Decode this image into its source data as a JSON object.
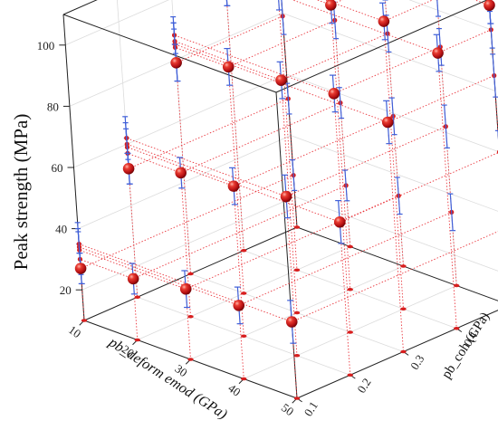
{
  "chart_data": {
    "type": "scatter",
    "title": "",
    "xlabel": "pb_deform emod (GPa)",
    "ylabel": "pb_coh (GPa)",
    "zlabel": "Peak strength (MPa)",
    "xlim": [
      10,
      50
    ],
    "ylim": [
      0.1,
      0.5
    ],
    "zlim": [
      10,
      110
    ],
    "x_ticks": [
      "10",
      "20",
      "30",
      "40",
      "50"
    ],
    "y_ticks": [
      "0.1",
      "0.2",
      "0.3",
      "0.4",
      "0.5"
    ],
    "z_ticks": [
      "20",
      "40",
      "60",
      "80",
      "100"
    ],
    "grid": true,
    "points": [
      {
        "x": 10,
        "y": 0.1,
        "z": 27,
        "err": 5
      },
      {
        "x": 10,
        "y": 0.2,
        "z": 52,
        "err": 5
      },
      {
        "x": 10,
        "y": 0.3,
        "z": 79,
        "err": 6
      },
      {
        "x": 10,
        "y": 0.4,
        "z": 96,
        "err": 6
      },
      {
        "x": 10,
        "y": 0.5,
        "z": 108,
        "err": 5
      },
      {
        "x": 20,
        "y": 0.1,
        "z": 30,
        "err": 5
      },
      {
        "x": 20,
        "y": 0.2,
        "z": 57,
        "err": 5
      },
      {
        "x": 20,
        "y": 0.3,
        "z": 84,
        "err": 6
      },
      {
        "x": 20,
        "y": 0.4,
        "z": 101,
        "err": 6
      },
      {
        "x": 20,
        "y": 0.5,
        "z": 112,
        "err": 5
      },
      {
        "x": 30,
        "y": 0.1,
        "z": 33,
        "err": 6
      },
      {
        "x": 30,
        "y": 0.2,
        "z": 59,
        "err": 6
      },
      {
        "x": 30,
        "y": 0.3,
        "z": 86,
        "err": 6
      },
      {
        "x": 30,
        "y": 0.4,
        "z": 103,
        "err": 6
      },
      {
        "x": 30,
        "y": 0.5,
        "z": 112,
        "err": 5
      },
      {
        "x": 40,
        "y": 0.1,
        "z": 34,
        "err": 6
      },
      {
        "x": 40,
        "y": 0.2,
        "z": 62,
        "err": 7
      },
      {
        "x": 40,
        "y": 0.3,
        "z": 88,
        "err": 6
      },
      {
        "x": 40,
        "y": 0.4,
        "z": 104,
        "err": 6
      },
      {
        "x": 40,
        "y": 0.5,
        "z": 110,
        "err": 5
      },
      {
        "x": 50,
        "y": 0.1,
        "z": 35,
        "err": 7
      },
      {
        "x": 50,
        "y": 0.2,
        "z": 60,
        "err": 7
      },
      {
        "x": 50,
        "y": 0.3,
        "z": 85,
        "err": 7
      },
      {
        "x": 50,
        "y": 0.4,
        "z": 100,
        "err": 6
      },
      {
        "x": 50,
        "y": 0.5,
        "z": 108,
        "err": 6
      }
    ],
    "colors": {
      "marker": "#d81e1e",
      "marker_highlight": "#ff8a80",
      "error_bar": "#3f5fd8",
      "drop_line": "#e8222a",
      "grid": "#dcdcdc",
      "frame": "#222222"
    }
  }
}
